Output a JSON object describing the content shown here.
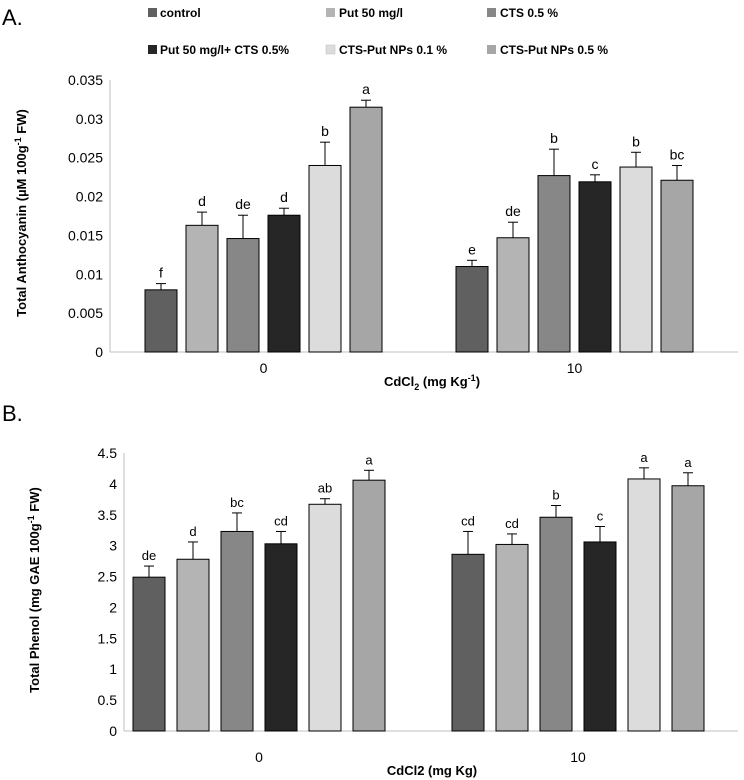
{
  "legend": [
    {
      "label": "control",
      "color": "#606060"
    },
    {
      "label": "Put 50 mg/l",
      "color": "#b4b4b4"
    },
    {
      "label": "CTS 0.5 %",
      "color": "#878787"
    },
    {
      "label": "Put 50 mg/l+ CTS 0.5%",
      "color": "#262626"
    },
    {
      "label": "CTS-Put NPs 0.1 %",
      "color": "#dcdcdc"
    },
    {
      "label": "CTS-Put NPs 0.5 %",
      "color": "#a6a6a6"
    }
  ],
  "chart_data": [
    {
      "type": "bar",
      "panel_label": "A.",
      "title": "",
      "ylabel": "Total Anthocyanin (µM 100g",
      "ylabel_sup": "-1",
      "ylabel_tail": " FW)",
      "xlabel": "CdCl",
      "xlabel_sub": "2",
      "xlabel_tail": " (mg Kg",
      "xlabel_sup": "-1",
      "xlabel_end": ")",
      "categories": [
        "0",
        "10"
      ],
      "ylim": [
        0,
        0.035
      ],
      "yticks": [
        "0",
        "0.005",
        "0.01",
        "0.015",
        "0.02",
        "0.025",
        "0.03",
        "0.035"
      ],
      "series": [
        {
          "name": "control",
          "values": [
            0.008,
            0.011
          ],
          "errors": [
            0.0008,
            0.0008
          ],
          "letters": [
            "f",
            "e"
          ]
        },
        {
          "name": "Put 50 mg/l",
          "values": [
            0.0163,
            0.0147
          ],
          "errors": [
            0.0017,
            0.002
          ],
          "letters": [
            "d",
            "de"
          ]
        },
        {
          "name": "CTS 0.5 %",
          "values": [
            0.0146,
            0.0227
          ],
          "errors": [
            0.003,
            0.0034
          ],
          "letters": [
            "de",
            "b"
          ]
        },
        {
          "name": "Put 50 mg/l+ CTS 0.5%",
          "values": [
            0.0176,
            0.0219
          ],
          "errors": [
            0.0009,
            0.0009
          ],
          "letters": [
            "d",
            "c"
          ]
        },
        {
          "name": "CTS-Put NPs 0.1 %",
          "values": [
            0.024,
            0.0238
          ],
          "errors": [
            0.003,
            0.0019
          ],
          "letters": [
            "b",
            "b"
          ]
        },
        {
          "name": "CTS-Put NPs 0.5 %",
          "values": [
            0.0315,
            0.0221
          ],
          "errors": [
            0.0009,
            0.0019
          ],
          "letters": [
            "a",
            "bc"
          ]
        }
      ]
    },
    {
      "type": "bar",
      "panel_label": "B.",
      "title": "",
      "ylabel": "Total Phenol (mg GAE 100g",
      "ylabel_sup": "-1",
      "ylabel_tail": " FW)",
      "xlabel": "CdCl2 (mg Kg)",
      "categories": [
        "0",
        "10"
      ],
      "ylim": [
        0,
        4.5
      ],
      "yticks": [
        "0",
        "0.5",
        "1",
        "1.5",
        "2",
        "2.5",
        "3",
        "3.5",
        "4",
        "4.5"
      ],
      "series": [
        {
          "name": "control",
          "values": [
            2.49,
            2.86
          ],
          "errors": [
            0.18,
            0.37
          ],
          "letters": [
            "de",
            "cd"
          ]
        },
        {
          "name": "Put 50 mg/l",
          "values": [
            2.78,
            3.02
          ],
          "errors": [
            0.28,
            0.17
          ],
          "letters": [
            "d",
            "cd"
          ]
        },
        {
          "name": "CTS 0.5 %",
          "values": [
            3.23,
            3.46
          ],
          "errors": [
            0.3,
            0.19
          ],
          "letters": [
            "bc",
            "b"
          ]
        },
        {
          "name": "Put 50 mg/l+ CTS 0.5%",
          "values": [
            3.03,
            3.06
          ],
          "errors": [
            0.2,
            0.25
          ],
          "letters": [
            "cd",
            "c"
          ]
        },
        {
          "name": "CTS-Put NPs 0.1 %",
          "values": [
            3.67,
            4.08
          ],
          "errors": [
            0.09,
            0.18
          ],
          "letters": [
            "ab",
            "a"
          ]
        },
        {
          "name": "CTS-Put NPs 0.5 %",
          "values": [
            4.06,
            3.97
          ],
          "errors": [
            0.16,
            0.21
          ],
          "letters": [
            "a",
            "a"
          ]
        }
      ]
    }
  ]
}
